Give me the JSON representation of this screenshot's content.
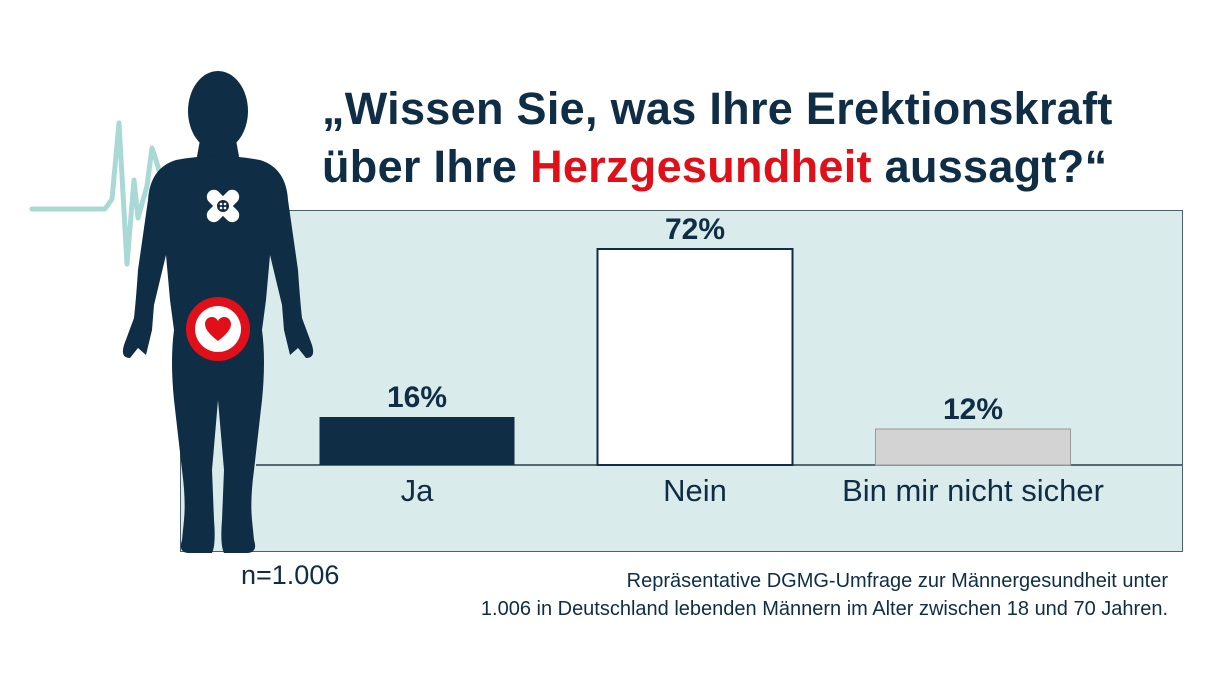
{
  "title": {
    "line1": "„Wissen Sie, was Ihre Erektionskraft",
    "line2_before": "über Ihre ",
    "line2_highlight": "Herzgesundheit",
    "line2_after": " aussagt?“"
  },
  "colors": {
    "navy": "#0f2d44",
    "red": "#e0101a",
    "panel": "#d9ebea",
    "pulse": "#a9d9d5",
    "bar_ja": "#0f2d44",
    "bar_nein": "#ffffff",
    "bar_unsure": "#d3d3d3"
  },
  "chart_data": {
    "type": "bar",
    "title": "„Wissen Sie, was Ihre Erektionskraft über Ihre Herzgesundheit aussagt?“",
    "categories": [
      "Ja",
      "Nein",
      "Bin mir nicht sicher"
    ],
    "values": [
      16,
      72,
      12
    ],
    "value_labels": [
      "16%",
      "72%",
      "12%"
    ],
    "unit": "%",
    "xlabel": "",
    "ylabel": "",
    "ylim": [
      0,
      100
    ],
    "grid": false,
    "legend": "none"
  },
  "sample_note": "n=1.006",
  "source": {
    "line1": "Repräsentative DGMG-Umfrage zur Männergesundheit unter",
    "line2": "1.006 in Deutschland lebenden Männern im Alter zwischen 18 und 70 Jahren."
  },
  "icons": {
    "figure": "human-silhouette-icon",
    "pulse": "heartbeat-line-icon",
    "bandage": "bandage-icon",
    "heart": "heart-icon"
  }
}
